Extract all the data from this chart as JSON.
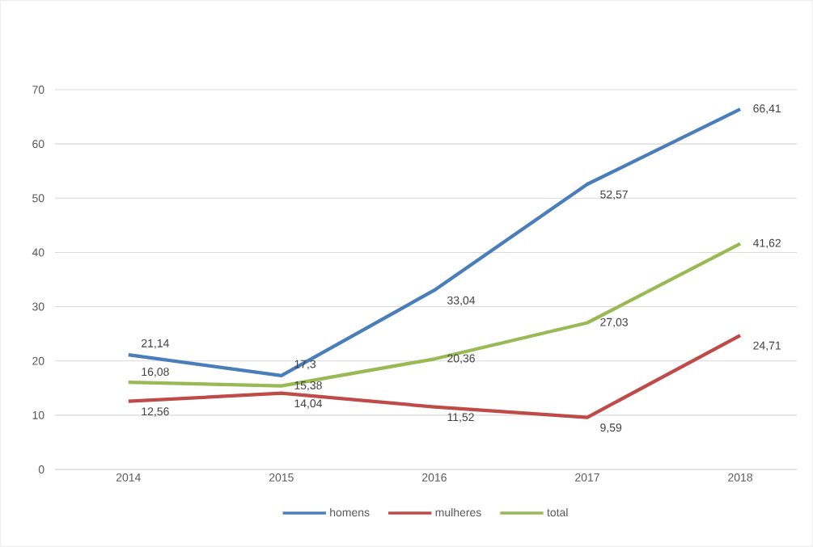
{
  "chart_data": {
    "type": "line",
    "categories": [
      "2014",
      "2015",
      "2016",
      "2017",
      "2018"
    ],
    "series": [
      {
        "name": "homens",
        "color": "#4a7ebb",
        "values": [
          21.14,
          17.3,
          33.04,
          52.57,
          66.41
        ],
        "value_labels": [
          "21,14",
          "17,3",
          "33,04",
          "52,57",
          "66,41"
        ]
      },
      {
        "name": "mulheres",
        "color": "#be4b48",
        "values": [
          12.56,
          14.04,
          11.52,
          9.59,
          24.71
        ],
        "value_labels": [
          "12,56",
          "14,04",
          "11,52",
          "9,59",
          "24,71"
        ]
      },
      {
        "name": "total",
        "color": "#98b954",
        "values": [
          16.08,
          15.38,
          20.36,
          27.03,
          41.62
        ],
        "value_labels": [
          "16,08",
          "15,38",
          "20,36",
          "27,03",
          "41,62"
        ]
      }
    ],
    "ylim": [
      0,
      70
    ],
    "yticks": [
      0,
      10,
      20,
      30,
      40,
      50,
      60,
      70
    ],
    "grid": "y",
    "legend": "bottom",
    "marker": "none",
    "line_style": "solid"
  }
}
